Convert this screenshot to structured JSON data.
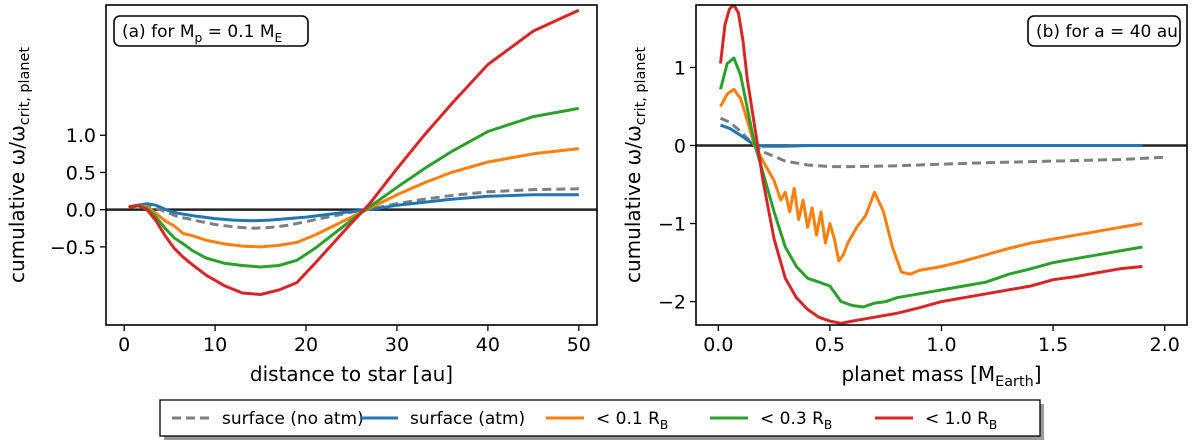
{
  "figure": {
    "legend": [
      {
        "series": "surface_noatm",
        "label": "surface (no atm)",
        "sub": "",
        "color": "#7f7f7f",
        "dash": true
      },
      {
        "series": "surface_atm",
        "label": "surface (atm)",
        "sub": "",
        "color": "#1f77b4",
        "dash": false
      },
      {
        "series": "r01",
        "label": "< 0.1 R",
        "sub": "B",
        "color": "#ff7f0e",
        "dash": false
      },
      {
        "series": "r03",
        "label": "< 0.3 R",
        "sub": "B",
        "color": "#2ca02c",
        "dash": false
      },
      {
        "series": "r10",
        "label": "< 1.0 R",
        "sub": "B",
        "color": "#d62728",
        "dash": false
      }
    ]
  },
  "chart_data": [
    {
      "type": "line",
      "panel": "a",
      "annotation": {
        "text": "(a) for M",
        "sub1": "p",
        "mid": " = 0.1 M",
        "sub2": "E"
      },
      "xlabel": "distance to star [au]",
      "ylabel": {
        "main": "cumulative ω/ω",
        "sub": "crit, planet"
      },
      "xlim": [
        -2,
        52
      ],
      "ylim": [
        -1.55,
        2.75
      ],
      "xticks": [
        0,
        10,
        20,
        30,
        40,
        50
      ],
      "xtick_labels": [
        "0",
        "10",
        "20",
        "30",
        "40",
        "50"
      ],
      "yticks": [
        -0.5,
        0.0,
        0.5,
        1.0
      ],
      "ytick_labels": [
        "−0.5",
        "0.0",
        "0.5",
        "1.0"
      ],
      "hline": 0,
      "series": [
        {
          "name": "surface (no atm)",
          "key": "surface_noatm",
          "color": "#7f7f7f",
          "dash": true,
          "x": [
            0.5,
            1.5,
            2.5,
            3.5,
            5,
            6,
            7,
            8,
            10,
            12,
            14,
            16,
            18,
            20,
            22,
            24,
            26,
            28,
            30,
            33,
            36,
            40,
            45,
            50
          ],
          "y": [
            0.03,
            0.05,
            0.06,
            0.02,
            -0.05,
            -0.1,
            -0.12,
            -0.15,
            -0.2,
            -0.23,
            -0.25,
            -0.24,
            -0.21,
            -0.16,
            -0.11,
            -0.06,
            -0.01,
            0.03,
            0.08,
            0.14,
            0.19,
            0.24,
            0.27,
            0.28
          ]
        },
        {
          "name": "surface (atm)",
          "key": "surface_atm",
          "color": "#1f77b4",
          "dash": false,
          "x": [
            0.5,
            1.5,
            2.5,
            3.5,
            5,
            6,
            8,
            10,
            12,
            14,
            16,
            18,
            20,
            22,
            24,
            26,
            28,
            30,
            33,
            36,
            40,
            45,
            50
          ],
          "y": [
            0.04,
            0.06,
            0.08,
            0.06,
            -0.02,
            -0.05,
            -0.09,
            -0.12,
            -0.14,
            -0.15,
            -0.14,
            -0.12,
            -0.1,
            -0.07,
            -0.04,
            -0.01,
            0.02,
            0.06,
            0.1,
            0.14,
            0.18,
            0.2,
            0.2
          ]
        },
        {
          "name": "< 0.1 RB",
          "key": "r01",
          "color": "#ff7f0e",
          "dash": false,
          "x": [
            0.5,
            1.5,
            2.5,
            3.5,
            4.5,
            5.5,
            6.5,
            7.5,
            9,
            11,
            13,
            15,
            17,
            19,
            21,
            23,
            25,
            27,
            30,
            33,
            36,
            40,
            45,
            50
          ],
          "y": [
            0.03,
            0.05,
            0.04,
            -0.05,
            -0.15,
            -0.22,
            -0.32,
            -0.35,
            -0.41,
            -0.46,
            -0.49,
            -0.5,
            -0.48,
            -0.44,
            -0.34,
            -0.22,
            -0.1,
            0.02,
            0.2,
            0.36,
            0.5,
            0.64,
            0.75,
            0.82
          ]
        },
        {
          "name": "< 0.3 RB",
          "key": "r03",
          "color": "#2ca02c",
          "dash": false,
          "x": [
            0.5,
            1.5,
            2.5,
            3.5,
            4.5,
            5.5,
            6.5,
            7.5,
            9,
            11,
            13,
            15,
            17,
            19,
            21,
            23,
            25,
            27,
            30,
            33,
            36,
            40,
            45,
            50
          ],
          "y": [
            0.03,
            0.05,
            0.02,
            -0.1,
            -0.25,
            -0.38,
            -0.46,
            -0.55,
            -0.65,
            -0.72,
            -0.75,
            -0.77,
            -0.75,
            -0.68,
            -0.52,
            -0.33,
            -0.14,
            0.04,
            0.3,
            0.55,
            0.78,
            1.05,
            1.25,
            1.36
          ]
        },
        {
          "name": "< 1.0 RB",
          "key": "r10",
          "color": "#d62728",
          "dash": false,
          "x": [
            0.5,
            1.5,
            2.5,
            3.5,
            4.5,
            5.5,
            6.5,
            7.5,
            9,
            11,
            13,
            15,
            17,
            19,
            21,
            23,
            25,
            27,
            30,
            33,
            36,
            40,
            45,
            50
          ],
          "y": [
            0.03,
            0.06,
            0.0,
            -0.15,
            -0.35,
            -0.52,
            -0.64,
            -0.74,
            -0.88,
            -1.02,
            -1.12,
            -1.14,
            -1.08,
            -0.98,
            -0.72,
            -0.45,
            -0.18,
            0.08,
            0.55,
            1.0,
            1.42,
            1.95,
            2.4,
            2.68
          ]
        }
      ]
    },
    {
      "type": "line",
      "panel": "b",
      "annotation": {
        "text": "(b) for a = 40 au",
        "sub1": "",
        "mid": "",
        "sub2": ""
      },
      "xlabel": "planet mass [M",
      "xlabel_sub": "Earth",
      "xlabel_end": "]",
      "ylabel": {
        "main": "cumulative ω/ω",
        "sub": "crit, planet"
      },
      "xlim": [
        -0.1,
        2.1
      ],
      "ylim": [
        -2.3,
        1.8
      ],
      "xticks": [
        0.0,
        0.5,
        1.0,
        1.5,
        2.0
      ],
      "xtick_labels": [
        "0.0",
        "0.5",
        "1.0",
        "1.5",
        "2.0"
      ],
      "yticks": [
        -2,
        -1,
        0,
        1
      ],
      "ytick_labels": [
        "−2",
        "−1",
        "0",
        "1"
      ],
      "hline": 0,
      "series": [
        {
          "name": "surface (no atm)",
          "key": "surface_noatm",
          "color": "#7f7f7f",
          "dash": true,
          "x": [
            0.01,
            0.05,
            0.1,
            0.15,
            0.2,
            0.3,
            0.4,
            0.5,
            0.6,
            0.8,
            1.0,
            1.2,
            1.5,
            1.8,
            2.0
          ],
          "y": [
            0.35,
            0.3,
            0.18,
            0.03,
            -0.08,
            -0.2,
            -0.25,
            -0.27,
            -0.27,
            -0.26,
            -0.24,
            -0.22,
            -0.2,
            -0.18,
            -0.15
          ]
        },
        {
          "name": "surface (atm)",
          "key": "surface_atm",
          "color": "#1f77b4",
          "dash": false,
          "x": [
            0.01,
            0.05,
            0.1,
            0.15,
            0.2,
            0.25,
            0.3,
            0.4,
            0.6,
            0.8,
            1.0,
            1.5,
            1.9
          ],
          "y": [
            0.26,
            0.22,
            0.13,
            0.03,
            -0.01,
            -0.01,
            -0.01,
            0.0,
            0.0,
            0.0,
            0.0,
            0.0,
            0.0
          ]
        },
        {
          "name": "< 0.1 RB",
          "key": "r01",
          "color": "#ff7f0e",
          "dash": false,
          "x": [
            0.01,
            0.04,
            0.07,
            0.1,
            0.13,
            0.16,
            0.2,
            0.25,
            0.28,
            0.3,
            0.32,
            0.34,
            0.36,
            0.38,
            0.4,
            0.42,
            0.44,
            0.46,
            0.48,
            0.5,
            0.52,
            0.54,
            0.56,
            0.58,
            0.62,
            0.66,
            0.7,
            0.74,
            0.78,
            0.82,
            0.86,
            0.9,
            1.0,
            1.1,
            1.2,
            1.3,
            1.4,
            1.5,
            1.6,
            1.7,
            1.8,
            1.9
          ],
          "y": [
            0.5,
            0.66,
            0.72,
            0.6,
            0.32,
            0.02,
            -0.2,
            -0.45,
            -0.7,
            -0.6,
            -0.85,
            -0.55,
            -0.95,
            -0.7,
            -1.05,
            -0.8,
            -1.15,
            -0.85,
            -1.25,
            -1.0,
            -1.2,
            -1.48,
            -1.4,
            -1.25,
            -1.05,
            -0.9,
            -0.6,
            -0.85,
            -1.3,
            -1.62,
            -1.65,
            -1.6,
            -1.55,
            -1.48,
            -1.4,
            -1.32,
            -1.25,
            -1.2,
            -1.15,
            -1.1,
            -1.05,
            -1.0
          ]
        },
        {
          "name": "< 0.3 RB",
          "key": "r03",
          "color": "#2ca02c",
          "dash": false,
          "x": [
            0.01,
            0.04,
            0.07,
            0.1,
            0.13,
            0.16,
            0.2,
            0.25,
            0.3,
            0.35,
            0.4,
            0.45,
            0.5,
            0.55,
            0.6,
            0.65,
            0.7,
            0.75,
            0.8,
            0.9,
            1.0,
            1.1,
            1.2,
            1.3,
            1.4,
            1.5,
            1.6,
            1.7,
            1.8,
            1.9
          ],
          "y": [
            0.72,
            1.05,
            1.12,
            0.9,
            0.48,
            0.05,
            -0.35,
            -0.85,
            -1.3,
            -1.55,
            -1.7,
            -1.75,
            -1.8,
            -2.0,
            -2.05,
            -2.07,
            -2.02,
            -2.0,
            -1.95,
            -1.9,
            -1.85,
            -1.8,
            -1.75,
            -1.65,
            -1.58,
            -1.5,
            -1.45,
            -1.4,
            -1.35,
            -1.3
          ]
        },
        {
          "name": "< 1.0 RB",
          "key": "r10",
          "color": "#d62728",
          "dash": false,
          "x": [
            0.01,
            0.03,
            0.05,
            0.07,
            0.09,
            0.11,
            0.13,
            0.16,
            0.2,
            0.25,
            0.3,
            0.35,
            0.4,
            0.45,
            0.5,
            0.55,
            0.6,
            0.7,
            0.8,
            0.9,
            1.0,
            1.1,
            1.2,
            1.3,
            1.4,
            1.5,
            1.6,
            1.7,
            1.8,
            1.9
          ],
          "y": [
            1.05,
            1.55,
            1.75,
            1.8,
            1.7,
            1.35,
            0.85,
            0.3,
            -0.45,
            -1.2,
            -1.7,
            -1.95,
            -2.1,
            -2.2,
            -2.25,
            -2.28,
            -2.25,
            -2.2,
            -2.15,
            -2.08,
            -2.0,
            -1.95,
            -1.9,
            -1.85,
            -1.8,
            -1.72,
            -1.68,
            -1.63,
            -1.58,
            -1.55
          ]
        }
      ]
    }
  ]
}
